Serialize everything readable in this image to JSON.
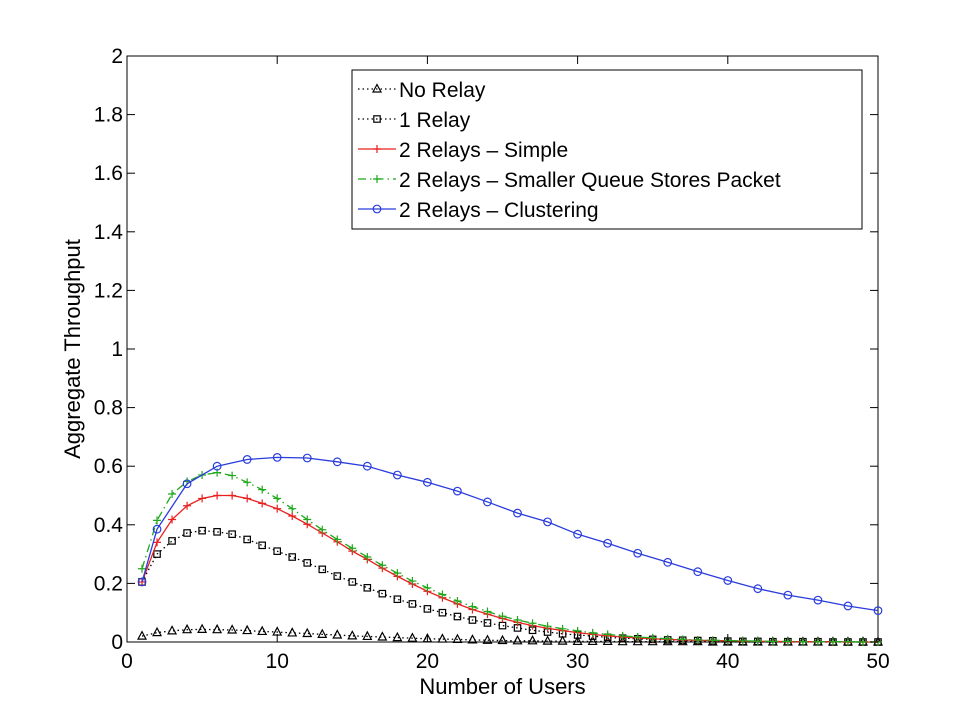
{
  "chart_data": {
    "type": "line",
    "title": "",
    "xlabel": "Number of Users",
    "ylabel": "Aggregate Throughput",
    "xlim": [
      0,
      50
    ],
    "ylim": [
      0,
      2
    ],
    "xticks": [
      0,
      10,
      20,
      30,
      40,
      50
    ],
    "xtick_labels": [
      "0",
      "10",
      "20",
      "30",
      "40",
      "50"
    ],
    "yticks": [
      0,
      0.2,
      0.4,
      0.6,
      0.8,
      1,
      1.2,
      1.4,
      1.6,
      1.8,
      2
    ],
    "ytick_labels": [
      "0",
      "0.2",
      "0.4",
      "0.6",
      "0.8",
      "1",
      "1.2",
      "1.4",
      "1.6",
      "1.8",
      "2"
    ],
    "grid": false,
    "legend_position": "top-right",
    "series": [
      {
        "name": "No Relay",
        "color": "#000000",
        "line_style": "dotted",
        "marker": "triangle",
        "x": [
          1,
          2,
          3,
          4,
          5,
          6,
          7,
          8,
          9,
          10,
          11,
          12,
          13,
          14,
          15,
          16,
          17,
          18,
          19,
          20,
          21,
          22,
          23,
          24,
          25,
          26,
          27,
          28,
          29,
          30,
          31,
          32,
          33,
          34,
          35,
          36,
          37,
          38,
          39,
          40,
          41,
          42,
          43,
          44,
          45,
          46,
          47,
          48,
          49,
          50
        ],
        "y": [
          0.02,
          0.032,
          0.038,
          0.042,
          0.043,
          0.042,
          0.041,
          0.039,
          0.036,
          0.034,
          0.031,
          0.029,
          0.026,
          0.024,
          0.021,
          0.019,
          0.017,
          0.015,
          0.013,
          0.011,
          0.01,
          0.009,
          0.007,
          0.006,
          0.005,
          0.004,
          0.004,
          0.003,
          0.003,
          0.002,
          0.002,
          0.002,
          0.001,
          0.001,
          0.001,
          0.001,
          0.001,
          0.001,
          0.0,
          0.0,
          0.0,
          0.0,
          0.0,
          0.0,
          0.0,
          0.0,
          0.0,
          0.0,
          0.0,
          0.0
        ]
      },
      {
        "name": "1 Relay",
        "color": "#000000",
        "line_style": "dotted",
        "marker": "square",
        "x": [
          1,
          2,
          3,
          4,
          5,
          6,
          7,
          8,
          9,
          10,
          11,
          12,
          13,
          14,
          15,
          16,
          17,
          18,
          19,
          20,
          21,
          22,
          23,
          24,
          25,
          26,
          27,
          28,
          29,
          30,
          31,
          32,
          33,
          34,
          35,
          36,
          37,
          38,
          39,
          40,
          41,
          42,
          43,
          44,
          45,
          46,
          47,
          48,
          49,
          50
        ],
        "y": [
          0.205,
          0.3,
          0.345,
          0.372,
          0.38,
          0.376,
          0.368,
          0.35,
          0.33,
          0.31,
          0.29,
          0.27,
          0.248,
          0.225,
          0.205,
          0.185,
          0.165,
          0.146,
          0.13,
          0.113,
          0.1,
          0.087,
          0.075,
          0.065,
          0.056,
          0.048,
          0.04,
          0.034,
          0.028,
          0.024,
          0.02,
          0.016,
          0.013,
          0.011,
          0.009,
          0.007,
          0.006,
          0.005,
          0.004,
          0.003,
          0.002,
          0.002,
          0.001,
          0.001,
          0.001,
          0.001,
          0.0,
          0.0,
          0.0,
          0.0
        ]
      },
      {
        "name": "2 Relays – Simple",
        "color": "#e8201f",
        "line_style": "solid",
        "marker": "plus",
        "x": [
          1,
          2,
          3,
          4,
          5,
          6,
          7,
          8,
          9,
          10,
          11,
          12,
          13,
          14,
          15,
          16,
          17,
          18,
          19,
          20,
          21,
          22,
          23,
          24,
          25,
          26,
          27,
          28,
          29,
          30,
          31,
          32,
          33,
          34,
          35,
          36,
          37,
          38,
          39,
          40,
          41,
          42,
          43,
          44,
          45,
          46,
          47,
          48,
          49,
          50
        ],
        "y": [
          0.205,
          0.34,
          0.418,
          0.465,
          0.49,
          0.5,
          0.5,
          0.49,
          0.473,
          0.455,
          0.43,
          0.402,
          0.372,
          0.342,
          0.31,
          0.282,
          0.252,
          0.224,
          0.198,
          0.173,
          0.151,
          0.13,
          0.111,
          0.095,
          0.08,
          0.067,
          0.056,
          0.047,
          0.039,
          0.032,
          0.026,
          0.021,
          0.017,
          0.014,
          0.011,
          0.009,
          0.007,
          0.006,
          0.005,
          0.004,
          0.003,
          0.002,
          0.002,
          0.001,
          0.001,
          0.001,
          0.001,
          0.0,
          0.0,
          0.0
        ]
      },
      {
        "name": "2 Relays – Smaller Queue Stores Packet",
        "color": "#1fa81c",
        "line_style": "dashdot",
        "marker": "plus",
        "x": [
          1,
          2,
          3,
          4,
          5,
          6,
          7,
          8,
          9,
          10,
          11,
          12,
          13,
          14,
          15,
          16,
          17,
          18,
          19,
          20,
          21,
          22,
          23,
          24,
          25,
          26,
          27,
          28,
          29,
          30,
          31,
          32,
          33,
          34,
          35,
          36,
          37,
          38,
          39,
          40,
          41,
          42,
          43,
          44,
          45,
          46,
          47,
          48,
          49,
          50
        ],
        "y": [
          0.25,
          0.415,
          0.505,
          0.548,
          0.57,
          0.578,
          0.568,
          0.545,
          0.52,
          0.49,
          0.455,
          0.418,
          0.383,
          0.35,
          0.32,
          0.29,
          0.262,
          0.235,
          0.208,
          0.185,
          0.162,
          0.14,
          0.121,
          0.104,
          0.088,
          0.075,
          0.064,
          0.054,
          0.045,
          0.038,
          0.031,
          0.026,
          0.021,
          0.017,
          0.014,
          0.011,
          0.009,
          0.007,
          0.006,
          0.005,
          0.004,
          0.003,
          0.002,
          0.002,
          0.001,
          0.001,
          0.001,
          0.001,
          0.0,
          0.0
        ]
      },
      {
        "name": "2 Relays – Clustering",
        "color": "#2a3cdb",
        "line_style": "solid",
        "marker": "circle",
        "x": [
          1,
          2,
          4,
          6,
          8,
          10,
          12,
          14,
          16,
          18,
          20,
          22,
          24,
          26,
          28,
          30,
          32,
          34,
          36,
          38,
          40,
          42,
          44,
          46,
          48,
          50
        ],
        "y": [
          0.205,
          0.385,
          0.54,
          0.6,
          0.623,
          0.63,
          0.628,
          0.615,
          0.6,
          0.57,
          0.545,
          0.515,
          0.478,
          0.44,
          0.41,
          0.368,
          0.337,
          0.303,
          0.272,
          0.24,
          0.21,
          0.182,
          0.16,
          0.143,
          0.123,
          0.107
        ]
      }
    ]
  }
}
